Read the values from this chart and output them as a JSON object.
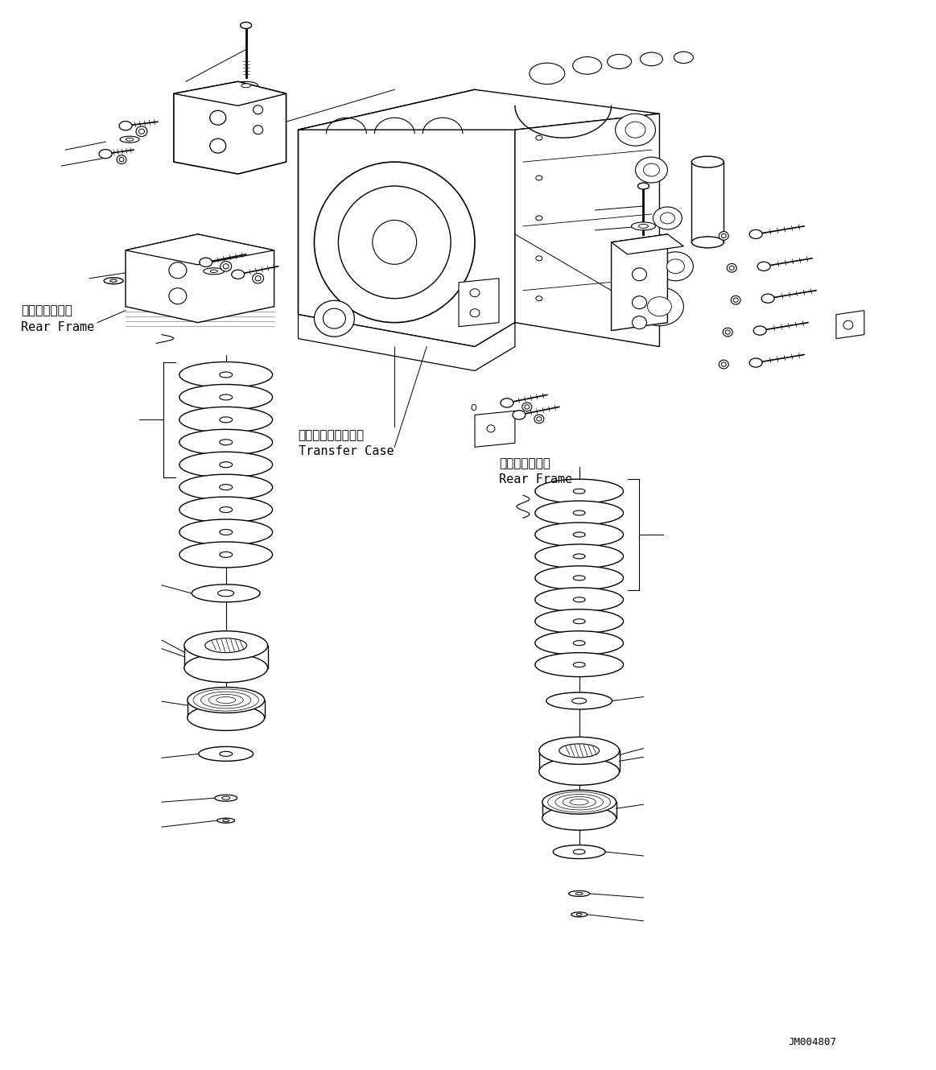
{
  "background_color": "#ffffff",
  "text_color": "#000000",
  "watermark": "JM004807",
  "labels": {
    "rear_frame_left_jp": "リヤーフレーム",
    "rear_frame_left_en": "Rear Frame",
    "transfer_case_jp": "トランスファケース",
    "transfer_case_en": "Transfer Case",
    "rear_frame_right_jp": "リヤーフレーム",
    "rear_frame_right_en": "Rear Frame"
  }
}
